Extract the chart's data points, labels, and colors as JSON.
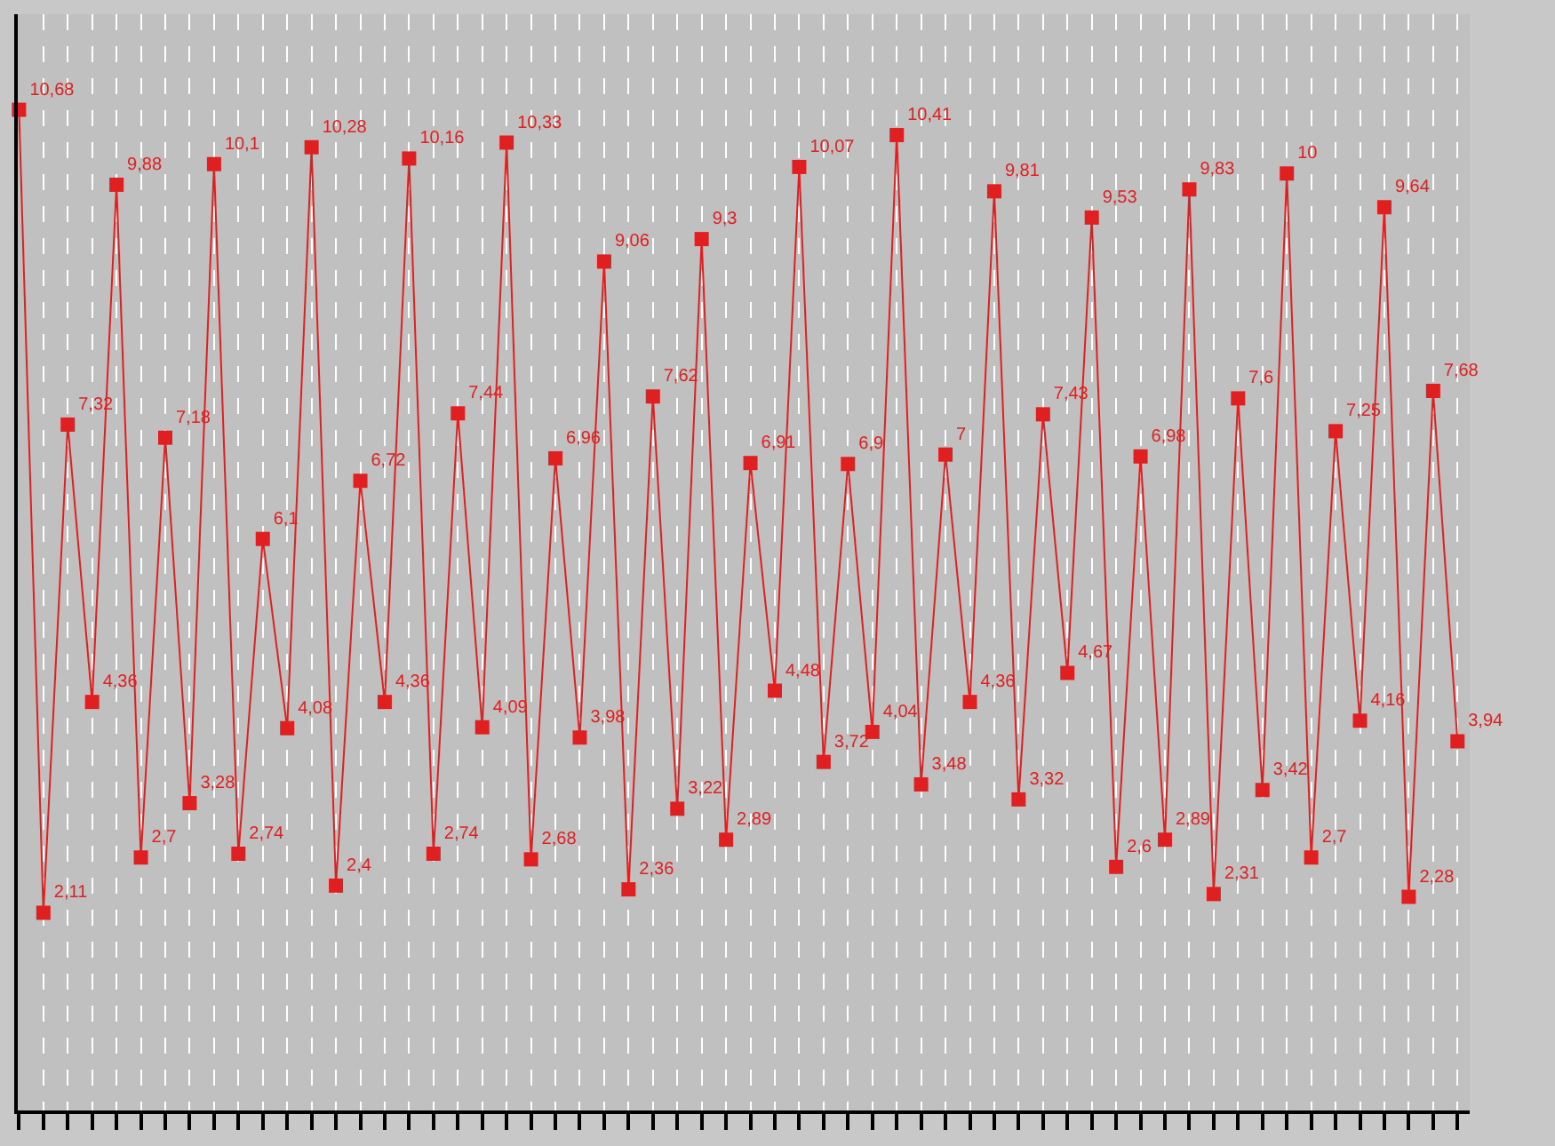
{
  "chart_data": {
    "type": "line",
    "categories": [
      null,
      null,
      null,
      null,
      null,
      null,
      null,
      null,
      null,
      null,
      null,
      null,
      null,
      null,
      null,
      null,
      null,
      null,
      null,
      null,
      null,
      null,
      null,
      null,
      null,
      null,
      null,
      null,
      null,
      null,
      null,
      null,
      null,
      null,
      null,
      null,
      null,
      null,
      null,
      null,
      null,
      null,
      null,
      null,
      null,
      null,
      null,
      null,
      null,
      null,
      null,
      null,
      null,
      null,
      null,
      null,
      null,
      null,
      null,
      null
    ],
    "series": [
      {
        "color": "#e02020",
        "values": [
          10.68,
          2.11,
          7.32,
          4.36,
          9.88,
          2.7,
          7.18,
          3.28,
          10.1,
          2.74,
          6.1,
          4.08,
          10.28,
          2.4,
          6.72,
          4.36,
          10.16,
          2.74,
          7.44,
          4.09,
          10.33,
          2.68,
          6.96,
          3.98,
          9.06,
          2.36,
          7.62,
          3.22,
          9.3,
          2.89,
          6.91,
          4.48,
          10.07,
          3.72,
          6.9,
          4.04,
          10.41,
          3.48,
          7,
          4.36,
          9.81,
          3.32,
          7.43,
          4.67,
          9.53,
          2.6,
          6.98,
          2.89,
          9.83,
          2.31,
          7.6,
          3.42,
          10,
          2.7,
          7.25,
          4.16,
          9.64,
          2.28,
          7.68,
          3.94
        ],
        "value_labels": [
          "10,68",
          "2,11",
          "7,32",
          "4,36",
          "9,88",
          "2,7",
          "7,18",
          "3,28",
          "10,1",
          "2,74",
          "6,1",
          "4,08",
          "10,28",
          "2,4",
          "6,72",
          "4,36",
          "10,16",
          "2,74",
          "7,44",
          "4,09",
          "10,33",
          "2,68",
          "6,96",
          "3,98",
          "9,06",
          "2,36",
          "7,62",
          "3,22",
          "9,3",
          "2,89",
          "6,91",
          "4,48",
          "10,07",
          "3,72",
          "6,9",
          "4,04",
          "10,41",
          "3,48",
          "7",
          "4,36",
          "9,81",
          "3,32",
          "7,43",
          "4,67",
          "9,53",
          "2,6",
          "6,98",
          "2,89",
          "9,83",
          "2,31",
          "7,6",
          "3,42",
          "10",
          "2,7",
          "7,25",
          "4,16",
          "9,64",
          "2,28",
          "7,68",
          "3,94"
        ]
      }
    ],
    "ylim": [
      0,
      11.7
    ],
    "tick_labels": false,
    "grid": "x",
    "marker": "square",
    "line_style": "solid"
  }
}
